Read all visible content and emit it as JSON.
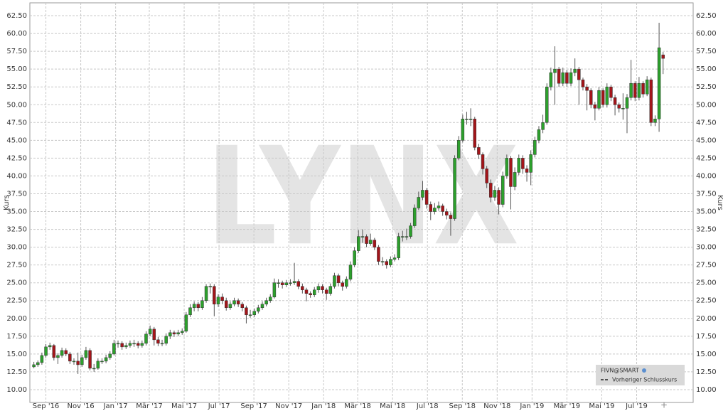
{
  "chart_data": {
    "type": "candlestick",
    "watermark": "LYNX",
    "y_label": "Kurs",
    "legend": {
      "title": "FIVN@SMART",
      "entry": "Vorheriger Schlusskurs"
    },
    "up_color": "#2ca02c",
    "down_color": "#a3151a",
    "grid": true,
    "xlim": [
      -1,
      164.5
    ],
    "xticks": [
      {
        "value": 3,
        "label": "Sep '16"
      },
      {
        "value": 11.7,
        "label": "Nov '16"
      },
      {
        "value": 20.4,
        "label": "Jan '17"
      },
      {
        "value": 28.8,
        "label": "Mär '17"
      },
      {
        "value": 37.5,
        "label": "Mai '17"
      },
      {
        "value": 46.2,
        "label": "Jul '17"
      },
      {
        "value": 54.9,
        "label": "Sep '17"
      },
      {
        "value": 63.6,
        "label": "Nov '17"
      },
      {
        "value": 72.3,
        "label": "Jan '18"
      },
      {
        "value": 80.8,
        "label": "Mär '18"
      },
      {
        "value": 89.5,
        "label": "Mai '18"
      },
      {
        "value": 98.2,
        "label": "Jul '18"
      },
      {
        "value": 106.9,
        "label": "Sep '18"
      },
      {
        "value": 115.6,
        "label": "Nov '18"
      },
      {
        "value": 124.3,
        "label": "Jan '19"
      },
      {
        "value": 133,
        "label": "Mär '19"
      },
      {
        "value": 141.7,
        "label": "Mai '19"
      },
      {
        "value": 150.4,
        "label": "Jul '19"
      }
    ],
    "ylim": [
      8.2,
      64.3
    ],
    "yticks": [
      {
        "value": 10,
        "label": "10.00"
      },
      {
        "value": 12.5,
        "label": "12.50"
      },
      {
        "value": 15,
        "label": "15.00"
      },
      {
        "value": 17.5,
        "label": "17.50"
      },
      {
        "value": 20,
        "label": "20.00"
      },
      {
        "value": 22.5,
        "label": "22.50"
      },
      {
        "value": 25,
        "label": "25.00"
      },
      {
        "value": 27.5,
        "label": "27.50"
      },
      {
        "value": 30,
        "label": "30.00"
      },
      {
        "value": 32.5,
        "label": "32.50"
      },
      {
        "value": 35,
        "label": "35.00"
      },
      {
        "value": 37.5,
        "label": "37.50"
      },
      {
        "value": 40,
        "label": "40.00"
      },
      {
        "value": 42.5,
        "label": "42.50"
      },
      {
        "value": 45,
        "label": "45.00"
      },
      {
        "value": 47.5,
        "label": "47.50"
      },
      {
        "value": 50,
        "label": "50.00"
      },
      {
        "value": 52.5,
        "label": "52.50"
      },
      {
        "value": 55,
        "label": "55.00"
      },
      {
        "value": 57.5,
        "label": "57.50"
      },
      {
        "value": 60,
        "label": "60.00"
      },
      {
        "value": 62.5,
        "label": "62.50"
      }
    ],
    "ohlc": [
      [
        13.2,
        13.9,
        13.0,
        13.5
      ],
      [
        13.5,
        14.1,
        13.2,
        13.8
      ],
      [
        13.8,
        15.2,
        13.5,
        14.8
      ],
      [
        14.8,
        16.4,
        14.5,
        16
      ],
      [
        16,
        16.6,
        15.6,
        16.2
      ],
      [
        16.2,
        16.4,
        14.1,
        14.5
      ],
      [
        14.5,
        15.1,
        13.6,
        14.8
      ],
      [
        14.8,
        15.9,
        14.5,
        15.5
      ],
      [
        15.5,
        15.8,
        14.7,
        15
      ],
      [
        15,
        15.3,
        13.6,
        14
      ],
      [
        14,
        14.4,
        13.5,
        14
      ],
      [
        14,
        15.2,
        12.2,
        13.5
      ],
      [
        13.5,
        14.9,
        13.2,
        14.5
      ],
      [
        14.5,
        16,
        14.2,
        15.5
      ],
      [
        15.5,
        15.8,
        12.7,
        13
      ],
      [
        13,
        13.6,
        12.5,
        13
      ],
      [
        13,
        14.4,
        12.8,
        14
      ],
      [
        14,
        14.4,
        13.6,
        14
      ],
      [
        14,
        14.9,
        13.7,
        14.5
      ],
      [
        14.5,
        15.4,
        14.2,
        15
      ],
      [
        15,
        17,
        14.8,
        16.5
      ],
      [
        16.5,
        16.9,
        15.9,
        16.5
      ],
      [
        16.5,
        16.8,
        15.6,
        16
      ],
      [
        16,
        16.6,
        15.7,
        16.2
      ],
      [
        16.2,
        16.9,
        15.9,
        16.5
      ],
      [
        16.5,
        17,
        16,
        16.5
      ],
      [
        16.5,
        16.8,
        15.8,
        16.2
      ],
      [
        16.2,
        16.9,
        15.9,
        16.5
      ],
      [
        16.5,
        18.2,
        16.2,
        17.8
      ],
      [
        17.8,
        19,
        17.5,
        18.5
      ],
      [
        18.5,
        18.8,
        16.2,
        17
      ],
      [
        17,
        17.4,
        16.1,
        16.5
      ],
      [
        16.5,
        17,
        16.1,
        16.5
      ],
      [
        16.5,
        17.9,
        16.2,
        17.5
      ],
      [
        17.5,
        18.4,
        17.1,
        18
      ],
      [
        18,
        18.3,
        17.4,
        17.8
      ],
      [
        17.8,
        18.4,
        17.5,
        18
      ],
      [
        18,
        18.6,
        17.7,
        18.2
      ],
      [
        18.2,
        20.9,
        18,
        20.5
      ],
      [
        20.5,
        22,
        20.2,
        21.5
      ],
      [
        21.5,
        22.4,
        21,
        22
      ],
      [
        22,
        22.3,
        21,
        21.5
      ],
      [
        21.5,
        23,
        21.2,
        22.5
      ],
      [
        22.5,
        24.8,
        22.2,
        24.5
      ],
      [
        24.5,
        24.9,
        23.5,
        24.5
      ],
      [
        24.5,
        24.8,
        20.3,
        22
      ],
      [
        22,
        23.4,
        21.6,
        23
      ],
      [
        23,
        23.5,
        22,
        22.5
      ],
      [
        22.5,
        22.9,
        21.1,
        21.5
      ],
      [
        21.5,
        22.4,
        21.2,
        22
      ],
      [
        22,
        22.9,
        21.7,
        22.5
      ],
      [
        22.5,
        22.8,
        21.6,
        22
      ],
      [
        22,
        22.3,
        21,
        21.5
      ],
      [
        21.5,
        21.8,
        19.3,
        20.5
      ],
      [
        20.5,
        21.2,
        20.1,
        20.5
      ],
      [
        20.5,
        21.4,
        20.2,
        21
      ],
      [
        21,
        21.9,
        20.7,
        21.5
      ],
      [
        21.5,
        22.4,
        21.2,
        22
      ],
      [
        22,
        22.9,
        21.7,
        22.5
      ],
      [
        22.5,
        23.4,
        22.2,
        23
      ],
      [
        23,
        25.6,
        22.8,
        25
      ],
      [
        25,
        25.5,
        24.3,
        25
      ],
      [
        25,
        25.3,
        24.2,
        24.7
      ],
      [
        24.7,
        25.4,
        24.4,
        25
      ],
      [
        25,
        25.5,
        24.6,
        25
      ],
      [
        25,
        27.8,
        24.7,
        25.2
      ],
      [
        25.2,
        25.5,
        24.1,
        24.5
      ],
      [
        24.5,
        24.9,
        23.5,
        24
      ],
      [
        24,
        24.3,
        22.4,
        23.5
      ],
      [
        23.5,
        23.8,
        22.9,
        23.3
      ],
      [
        23.3,
        24.4,
        23,
        24
      ],
      [
        24,
        24.9,
        23.6,
        24.5
      ],
      [
        24.5,
        24.8,
        23.5,
        24
      ],
      [
        24,
        24.3,
        22.6,
        23.5
      ],
      [
        23.5,
        24.9,
        23.2,
        24.5
      ],
      [
        24.5,
        26.4,
        24.2,
        26
      ],
      [
        26,
        26.3,
        24.5,
        25
      ],
      [
        25,
        25.3,
        23.9,
        24.5
      ],
      [
        24.5,
        25.9,
        24.2,
        25.5
      ],
      [
        25.5,
        28,
        25.2,
        27.5
      ],
      [
        27.5,
        30,
        27.2,
        29.5
      ],
      [
        29.5,
        32.4,
        29.2,
        31.5
      ],
      [
        31.5,
        32.5,
        30.6,
        31.5
      ],
      [
        31.5,
        31.8,
        30,
        30.5
      ],
      [
        30.5,
        31.9,
        30.2,
        31
      ],
      [
        31,
        31.3,
        29.6,
        30
      ],
      [
        30,
        30.3,
        27.5,
        28
      ],
      [
        28,
        28.6,
        27.4,
        28
      ],
      [
        28,
        28.3,
        27,
        27.5
      ],
      [
        27.5,
        28.7,
        27.2,
        28.3
      ],
      [
        28.3,
        29,
        28,
        28.5
      ],
      [
        28.5,
        32,
        28.2,
        31.5
      ],
      [
        31.5,
        32.3,
        30.8,
        31.5
      ],
      [
        31.5,
        32.6,
        31,
        31.5
      ],
      [
        31.5,
        33.4,
        31.2,
        33
      ],
      [
        33,
        36,
        32.7,
        35.5
      ],
      [
        35.5,
        37.8,
        35.2,
        37
      ],
      [
        37,
        39.3,
        36.6,
        38
      ],
      [
        38,
        38.3,
        35.4,
        36
      ],
      [
        36,
        36.4,
        33.8,
        35
      ],
      [
        35,
        36.2,
        34.6,
        35.5
      ],
      [
        35.5,
        36.4,
        35.1,
        35.8
      ],
      [
        35.8,
        36.1,
        34.4,
        35
      ],
      [
        35,
        35.4,
        33.9,
        34.5
      ],
      [
        34.5,
        34.9,
        31.6,
        34
      ],
      [
        34,
        42.9,
        33.7,
        42.5
      ],
      [
        42.5,
        45.6,
        42.2,
        45
      ],
      [
        45,
        48.6,
        44.7,
        48
      ],
      [
        48,
        49,
        47.2,
        48
      ],
      [
        48,
        49.5,
        47,
        48
      ],
      [
        48,
        48.3,
        43.6,
        44
      ],
      [
        44,
        44.5,
        42.4,
        43
      ],
      [
        43,
        43.3,
        40.2,
        41
      ],
      [
        41,
        41.4,
        38.3,
        39
      ],
      [
        39,
        39.5,
        36.3,
        37
      ],
      [
        37,
        38.6,
        36.5,
        38
      ],
      [
        38,
        38.4,
        34.6,
        36
      ],
      [
        36,
        40.6,
        35.6,
        40
      ],
      [
        40,
        43,
        39.6,
        42.5
      ],
      [
        42.5,
        42.8,
        35.3,
        38.5
      ],
      [
        38.5,
        41.2,
        38,
        40.5
      ],
      [
        40.5,
        43,
        40.1,
        42.5
      ],
      [
        42.5,
        42.9,
        40.3,
        41
      ],
      [
        41,
        41.5,
        39.2,
        40.5
      ],
      [
        40.5,
        43.6,
        38.7,
        43
      ],
      [
        43,
        45.5,
        42.6,
        45
      ],
      [
        45,
        47,
        44.6,
        46.5
      ],
      [
        46.5,
        48.6,
        46,
        47.5
      ],
      [
        47.5,
        53,
        47.2,
        52.5
      ],
      [
        52.5,
        55.2,
        52,
        54.5
      ],
      [
        54.5,
        58.2,
        50,
        55
      ],
      [
        55,
        55.3,
        52.5,
        53
      ],
      [
        53,
        55.2,
        52.6,
        54.5
      ],
      [
        54.5,
        54.9,
        52.5,
        53
      ],
      [
        53,
        55.1,
        52.6,
        54.5
      ],
      [
        54.5,
        56.5,
        54,
        55
      ],
      [
        55,
        55.3,
        50,
        53.5
      ],
      [
        53.5,
        53.8,
        52,
        52.5
      ],
      [
        52.5,
        52.9,
        49.2,
        52
      ],
      [
        52,
        52.3,
        49.5,
        50
      ],
      [
        50,
        50.4,
        47.8,
        49.5
      ],
      [
        49.5,
        52.5,
        49.2,
        52
      ],
      [
        52,
        52.3,
        49.6,
        50
      ],
      [
        50,
        53,
        49.6,
        52.5
      ],
      [
        52.5,
        52.8,
        50.5,
        51
      ],
      [
        51,
        51.4,
        48.5,
        50
      ],
      [
        50,
        50.3,
        48.9,
        49.5
      ],
      [
        49.5,
        51.6,
        47.9,
        49.5
      ],
      [
        49.5,
        51.5,
        46,
        51
      ],
      [
        51,
        56.3,
        50.6,
        53
      ],
      [
        53,
        53.3,
        50.5,
        51
      ],
      [
        51,
        53.9,
        50.6,
        53
      ],
      [
        53,
        53.3,
        51,
        51.5
      ],
      [
        51.5,
        54,
        51.2,
        53.5
      ],
      [
        53.5,
        53.8,
        47,
        47.5
      ],
      [
        47.5,
        48.5,
        47,
        48
      ],
      [
        48,
        61.5,
        46.2,
        58
      ],
      [
        57,
        57.4,
        54.3,
        56.5
      ]
    ]
  }
}
